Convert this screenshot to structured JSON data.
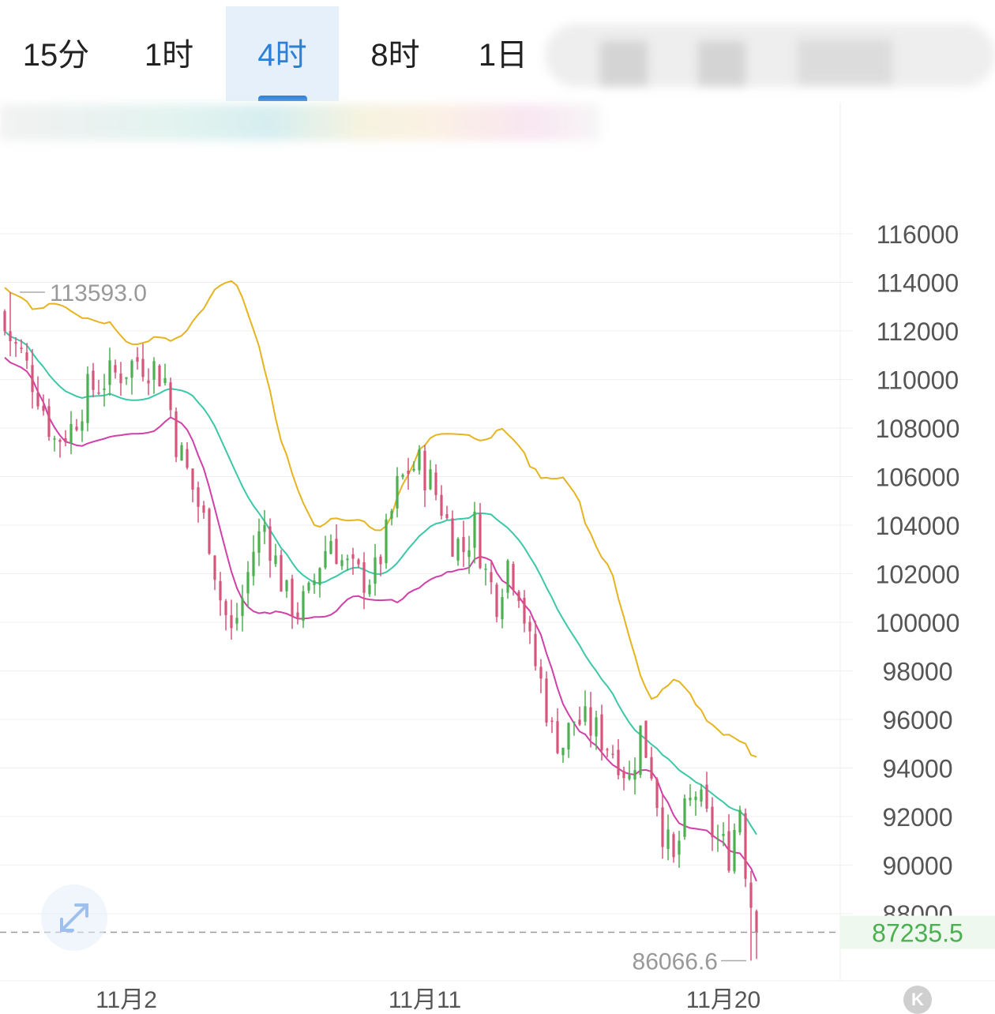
{
  "tabs": [
    {
      "label": "15分",
      "active": false
    },
    {
      "label": "1时",
      "active": false
    },
    {
      "label": "4时",
      "active": true
    },
    {
      "label": "8时",
      "active": false
    },
    {
      "label": "1日",
      "active": false
    }
  ],
  "chart_data": {
    "type": "candlestick",
    "y_axis": {
      "ticks": [
        116000,
        114000,
        112000,
        110000,
        108000,
        106000,
        104000,
        102000,
        100000,
        98000,
        96000,
        94000,
        92000,
        90000,
        88000
      ],
      "labels": [
        "116000",
        "114000",
        "112000",
        "110000",
        "108000",
        "106000",
        "104000",
        "102000",
        "100000",
        "98000",
        "96000",
        "94000",
        "92000",
        "90000",
        "88000"
      ]
    },
    "x_axis": {
      "labels": [
        {
          "label": "11月2",
          "index": 22
        },
        {
          "label": "11月11",
          "index": 76
        },
        {
          "label": "11月20",
          "index": 130
        }
      ]
    },
    "annotations": {
      "high": {
        "label": "113593.0",
        "value": 113593.0,
        "index": 1
      },
      "low": {
        "label": "86066.6",
        "value": 86066.6,
        "index": 135
      }
    },
    "last_price": {
      "label": "87235.5",
      "value": 87235.5,
      "color": "#4caf50"
    },
    "colors": {
      "up": "#4caf50",
      "down": "#d6557a",
      "boll_upper": "#e6b41e",
      "boll_mid": "#3cc8a8",
      "boll_lower": "#d040a8"
    },
    "waypoints": [
      [
        0,
        112000
      ],
      [
        3,
        111000
      ],
      [
        6,
        109500
      ],
      [
        9,
        107500
      ],
      [
        12,
        108000
      ],
      [
        15,
        109500
      ],
      [
        18,
        110000
      ],
      [
        21,
        110300
      ],
      [
        24,
        110800
      ],
      [
        27,
        110500
      ],
      [
        29,
        110000
      ],
      [
        31,
        107500
      ],
      [
        34,
        105500
      ],
      [
        37,
        103500
      ],
      [
        39,
        101000
      ],
      [
        41,
        99500
      ],
      [
        43,
        101000
      ],
      [
        45,
        103000
      ],
      [
        47,
        104000
      ],
      [
        49,
        102500
      ],
      [
        51,
        101000
      ],
      [
        53,
        100500
      ],
      [
        55,
        101000
      ],
      [
        57,
        102500
      ],
      [
        59,
        103500
      ],
      [
        61,
        102500
      ],
      [
        63,
        102000
      ],
      [
        65,
        101800
      ],
      [
        67,
        102000
      ],
      [
        69,
        103500
      ],
      [
        71,
        105500
      ],
      [
        73,
        106300
      ],
      [
        75,
        106500
      ],
      [
        77,
        105800
      ],
      [
        79,
        104800
      ],
      [
        81,
        103500
      ],
      [
        83,
        103000
      ],
      [
        85,
        104000
      ],
      [
        87,
        102000
      ],
      [
        89,
        101000
      ],
      [
        91,
        102500
      ],
      [
        93,
        101500
      ],
      [
        95,
        99000
      ],
      [
        97,
        97500
      ],
      [
        99,
        95500
      ],
      [
        101,
        95000
      ],
      [
        103,
        96000
      ],
      [
        105,
        95800
      ],
      [
        107,
        95500
      ],
      [
        109,
        95000
      ],
      [
        111,
        94500
      ],
      [
        113,
        93500
      ],
      [
        115,
        95500
      ],
      [
        117,
        94000
      ],
      [
        119,
        91500
      ],
      [
        121,
        90000
      ],
      [
        123,
        92000
      ],
      [
        125,
        93000
      ],
      [
        127,
        91800
      ],
      [
        129,
        91000
      ],
      [
        131,
        90500
      ],
      [
        133,
        92500
      ],
      [
        134,
        90000
      ],
      [
        135,
        88500
      ],
      [
        136,
        87235.5
      ]
    ]
  }
}
